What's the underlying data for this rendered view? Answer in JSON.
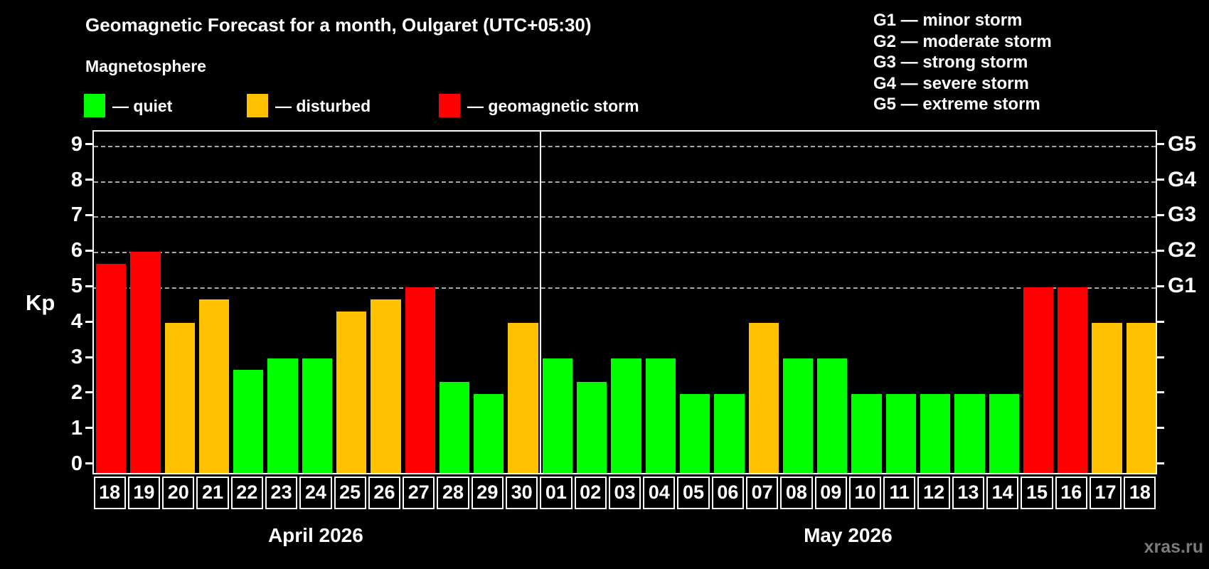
{
  "title": "Geomagnetic Forecast for a month, Oulgaret (UTC+05:30)",
  "subtitle": "Magnetosphere",
  "legend": [
    {
      "label": "— quiet",
      "status": "quiet",
      "color": "#00ff00"
    },
    {
      "label": "— disturbed",
      "status": "disturbed",
      "color": "#ffc200"
    },
    {
      "label": "— geomagnetic storm",
      "status": "storm",
      "color": "#ff0000"
    }
  ],
  "storm_scale_legend": [
    "G1 — minor storm",
    "G2 — moderate storm",
    "G3 — strong storm",
    "G4 — severe storm",
    "G5 — extreme storm"
  ],
  "watermark": "xras.ru",
  "chart_data": {
    "type": "bar",
    "ylabel": "Kp",
    "ylim": [
      0,
      9
    ],
    "yticks": [
      0,
      1,
      2,
      3,
      4,
      5,
      6,
      7,
      8,
      9
    ],
    "gridlines_at_kp": [
      5,
      6,
      7,
      8,
      9
    ],
    "right_axis_labels": [
      {
        "kp": 5,
        "label": "G1"
      },
      {
        "kp": 6,
        "label": "G2"
      },
      {
        "kp": 7,
        "label": "G3"
      },
      {
        "kp": 8,
        "label": "G4"
      },
      {
        "kp": 9,
        "label": "G5"
      }
    ],
    "status_colors": {
      "quiet": "#00ff00",
      "disturbed": "#ffc200",
      "storm": "#ff0000"
    },
    "months": [
      {
        "label": "April 2026",
        "days": [
          {
            "day": "18",
            "value": 5.67,
            "status": "storm"
          },
          {
            "day": "19",
            "value": 6.0,
            "status": "storm"
          },
          {
            "day": "20",
            "value": 4.0,
            "status": "disturbed"
          },
          {
            "day": "21",
            "value": 4.67,
            "status": "disturbed"
          },
          {
            "day": "22",
            "value": 2.67,
            "status": "quiet"
          },
          {
            "day": "23",
            "value": 3.0,
            "status": "quiet"
          },
          {
            "day": "24",
            "value": 3.0,
            "status": "quiet"
          },
          {
            "day": "25",
            "value": 4.33,
            "status": "disturbed"
          },
          {
            "day": "26",
            "value": 4.67,
            "status": "disturbed"
          },
          {
            "day": "27",
            "value": 5.0,
            "status": "storm"
          },
          {
            "day": "28",
            "value": 2.33,
            "status": "quiet"
          },
          {
            "day": "29",
            "value": 2.0,
            "status": "quiet"
          },
          {
            "day": "30",
            "value": 4.0,
            "status": "disturbed"
          }
        ]
      },
      {
        "label": "May 2026",
        "days": [
          {
            "day": "01",
            "value": 3.0,
            "status": "quiet"
          },
          {
            "day": "02",
            "value": 2.33,
            "status": "quiet"
          },
          {
            "day": "03",
            "value": 3.0,
            "status": "quiet"
          },
          {
            "day": "04",
            "value": 3.0,
            "status": "quiet"
          },
          {
            "day": "05",
            "value": 2.0,
            "status": "quiet"
          },
          {
            "day": "06",
            "value": 2.0,
            "status": "quiet"
          },
          {
            "day": "07",
            "value": 4.0,
            "status": "disturbed"
          },
          {
            "day": "08",
            "value": 3.0,
            "status": "quiet"
          },
          {
            "day": "09",
            "value": 3.0,
            "status": "quiet"
          },
          {
            "day": "10",
            "value": 2.0,
            "status": "quiet"
          },
          {
            "day": "11",
            "value": 2.0,
            "status": "quiet"
          },
          {
            "day": "12",
            "value": 2.0,
            "status": "quiet"
          },
          {
            "day": "13",
            "value": 2.0,
            "status": "quiet"
          },
          {
            "day": "14",
            "value": 2.0,
            "status": "quiet"
          },
          {
            "day": "15",
            "value": 5.0,
            "status": "storm"
          },
          {
            "day": "16",
            "value": 5.0,
            "status": "storm"
          },
          {
            "day": "17",
            "value": 4.0,
            "status": "disturbed"
          },
          {
            "day": "18",
            "value": 4.0,
            "status": "disturbed"
          }
        ]
      }
    ]
  }
}
